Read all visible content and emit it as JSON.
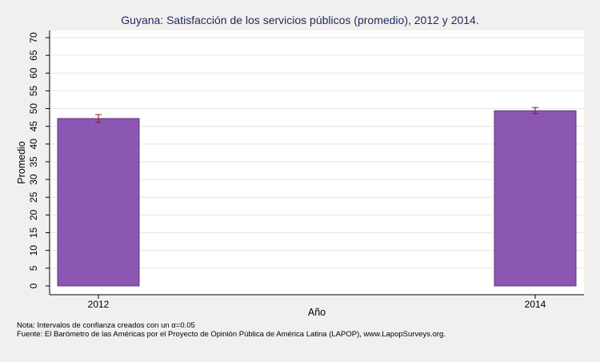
{
  "chart_data": {
    "type": "bar",
    "title": "Guyana: Satisfacción de los servicios públicos (promedio), 2012 y 2014.",
    "xlabel": "Año",
    "ylabel": "Promedio",
    "categories": [
      "2012",
      "2014"
    ],
    "values": [
      47.2,
      49.4
    ],
    "error_bars": [
      {
        "low": 46.1,
        "high": 48.3
      },
      {
        "low": 48.6,
        "high": 50.3
      }
    ],
    "ylim": [
      0,
      70
    ],
    "yticks": [
      0,
      5,
      10,
      15,
      20,
      25,
      30,
      35,
      40,
      45,
      50,
      55,
      60,
      65,
      70
    ],
    "grid": true,
    "bar_color": "#8b57b2",
    "error_bar_color": "#8b1a1a",
    "grid_color": "#e6e6e6",
    "plot_background": "#ffffff",
    "page_background": "#f1f0ef"
  },
  "notes": {
    "note": "Nota: Intervalos de confianza creados con un α=0.05",
    "source": "Fuente: El Barómetro de las Américas por el Proyecto de Opinión Pública de América Latina (LAPOP), www.LapopSurveys.org."
  }
}
